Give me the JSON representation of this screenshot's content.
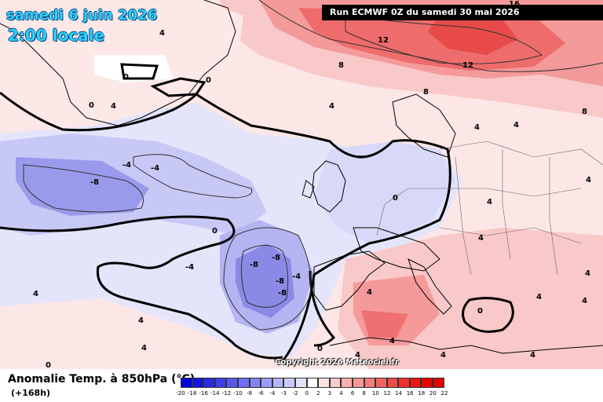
{
  "header": {
    "date_title": "samedi 6 juin 2026",
    "time_title": "2:00 locale",
    "run_info": "Run ECMWF 0Z du samedi 30 mai 2026"
  },
  "footer": {
    "variable_title": "Anomalie Temp. à 850hPa (°C)",
    "lead_time": "(+168h)",
    "copyright": "Copyright 2026 Meteociel.fr"
  },
  "legend": {
    "ticks": [
      "-20",
      "-18",
      "-16",
      "-14",
      "-12",
      "-10",
      "-8",
      "-6",
      "-4",
      "-3",
      "-2",
      "0",
      "2",
      "3",
      "4",
      "6",
      "8",
      "10",
      "12",
      "14",
      "16",
      "18",
      "20",
      "22"
    ],
    "colors": [
      "#0000d8",
      "#1515de",
      "#2a2ae6",
      "#4040ea",
      "#5858ee",
      "#6e6ef2",
      "#8484f4",
      "#9c9cf6",
      "#b4b4f8",
      "#cacafa",
      "#e2e2fc",
      "#ffffff",
      "#fde2e2",
      "#fbcaca",
      "#f9b0b0",
      "#f79696",
      "#f57c7c",
      "#f36262",
      "#f14848",
      "#ef2e2e",
      "#ed1414",
      "#e80000",
      "#e00000"
    ]
  },
  "map": {
    "colors": {
      "ocean_light_blue": "#dcdcfa",
      "cold_blue": "#b4b4f2",
      "colder_blue": "#8a8ae6",
      "light_pink": "#fde8e8",
      "pink": "#f9c4c4",
      "warm": "#f49898",
      "hot": "#ef6a6a",
      "coast": "#000000"
    },
    "contour_labels": [
      "4",
      "0",
      "0",
      "0",
      "4",
      "4",
      "8",
      "12",
      "12",
      "8",
      "8",
      "4",
      "4",
      "4",
      "-4",
      "-4",
      "-8",
      "-8",
      "-8",
      "-8",
      "-4",
      "-4",
      "-8",
      "0",
      "0",
      "4",
      "4",
      "4",
      "4",
      "4",
      "4",
      "4",
      "0",
      "0",
      "4",
      "4",
      "4",
      "4",
      "4",
      "0",
      "4",
      "16"
    ]
  }
}
